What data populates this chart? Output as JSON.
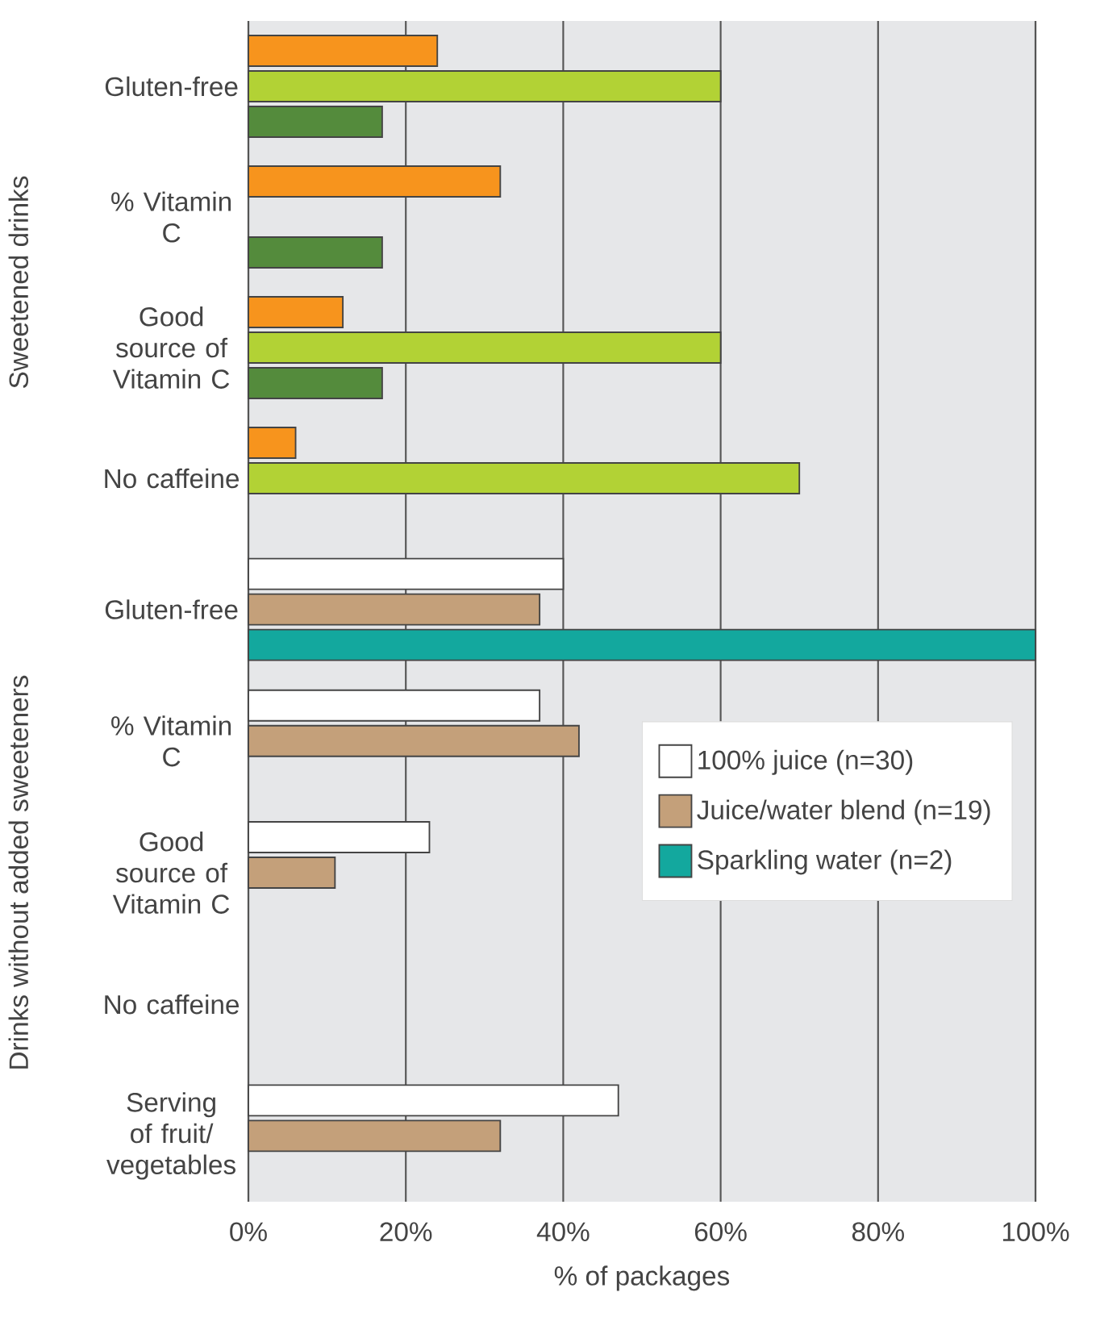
{
  "chart_data": [
    {
      "type": "bar",
      "orientation": "horizontal",
      "ylabel": "Sweetened drinks",
      "categories": [
        "Gluten-free",
        "% Vitamin C",
        "Good source of Vitamin C",
        "No caffeine"
      ],
      "series": [
        {
          "color": "#f7941d",
          "values": [
            24,
            32,
            12,
            6
          ]
        },
        {
          "color": "#b2d235",
          "values": [
            60,
            null,
            60,
            70
          ]
        },
        {
          "color": "#548b3c",
          "values": [
            17,
            17,
            17,
            null
          ]
        }
      ],
      "xlim": [
        0,
        100
      ],
      "xticks": [
        {
          "value": 0,
          "label": null
        },
        {
          "value": 20,
          "label": null
        },
        {
          "value": 40,
          "label": null
        },
        {
          "value": 60,
          "label": null
        },
        {
          "value": 80,
          "label": null
        },
        {
          "value": 100,
          "label": null
        }
      ],
      "tick_labels": "y",
      "grid": "x",
      "legend": false
    },
    {
      "type": "bar",
      "orientation": "horizontal",
      "ylabel": "Drinks without added sweeteners",
      "xlabel": "% of packages",
      "categories": [
        "Gluten-free",
        "% Vitamin C",
        "Good source of Vitamin C",
        "No caffeine",
        "Serving of fruit/ vegetables"
      ],
      "series": [
        {
          "name": "100% juice (n=30)",
          "color": "#ffffff",
          "values": [
            40,
            37,
            23,
            null,
            47
          ]
        },
        {
          "name": "Juice/water blend (n=19)",
          "color": "#c4a07a",
          "values": [
            37,
            42,
            11,
            null,
            32
          ]
        },
        {
          "name": "Sparkling water (n=2)",
          "color": "#13a89e",
          "values": [
            100,
            null,
            null,
            null,
            null
          ]
        }
      ],
      "xlim": [
        0,
        100
      ],
      "xticks": [
        {
          "value": 0,
          "label": "0%"
        },
        {
          "value": 20,
          "label": "20%"
        },
        {
          "value": 40,
          "label": "40%"
        },
        {
          "value": 60,
          "label": "60%"
        },
        {
          "value": 80,
          "label": "80%"
        },
        {
          "value": 100,
          "label": "100%"
        }
      ],
      "grid": "x",
      "legend": "right"
    }
  ]
}
